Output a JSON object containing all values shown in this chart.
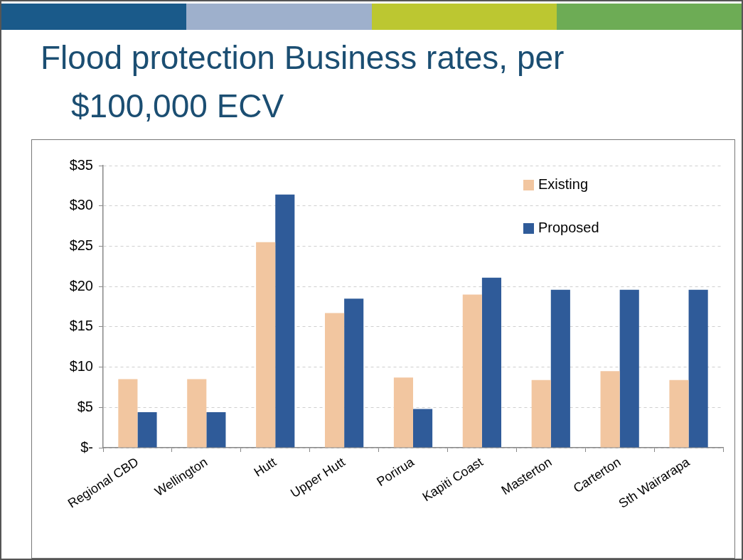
{
  "chart_data": {
    "type": "bar",
    "title": "Flood protection Business rates, per $100,000 ECV",
    "categories": [
      "Regional CBD",
      "Wellington",
      "Hutt",
      "Upper Hutt",
      "Porirua",
      "Kapiti Coast",
      "Masterton",
      "Carterton",
      "Sth Wairarapa"
    ],
    "series": [
      {
        "name": "Existing",
        "color": "#f2c6a0",
        "values": [
          8.5,
          8.5,
          25.5,
          16.7,
          8.7,
          19.0,
          8.4,
          9.5,
          8.4
        ]
      },
      {
        "name": "Proposed",
        "color": "#2f5b99",
        "values": [
          4.4,
          4.4,
          31.4,
          18.5,
          4.8,
          21.1,
          19.6,
          19.6,
          19.6
        ]
      }
    ],
    "ylim": [
      0,
      35
    ],
    "yticks": [
      {
        "value": 0,
        "label": "$-"
      },
      {
        "value": 5,
        "label": "$5"
      },
      {
        "value": 10,
        "label": "$10"
      },
      {
        "value": 15,
        "label": "$15"
      },
      {
        "value": 20,
        "label": "$20"
      },
      {
        "value": 25,
        "label": "$25"
      },
      {
        "value": 30,
        "label": "$30"
      },
      {
        "value": 35,
        "label": "$35"
      }
    ],
    "grid": "y",
    "legend": "top right"
  }
}
